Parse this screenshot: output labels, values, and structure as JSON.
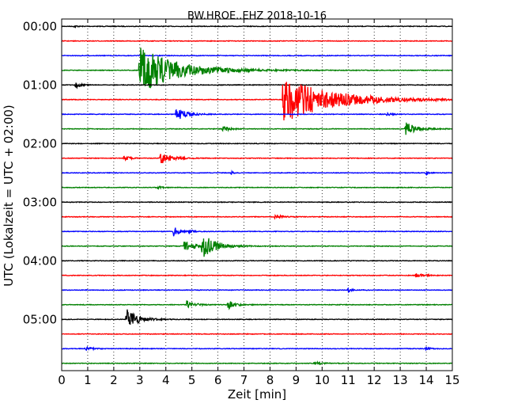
{
  "chart_data": {
    "type": "line",
    "title": "BW.HROE..EHZ 2018-10-16",
    "xlabel": "Zeit  [min]",
    "ylabel": "UTC (Lokalzeit = UTC + 02:00)",
    "xlim": [
      0,
      15
    ],
    "xticks": [
      0,
      1,
      2,
      3,
      4,
      5,
      6,
      7,
      8,
      9,
      10,
      11,
      12,
      13,
      14,
      15
    ],
    "ylim_rows": [
      -0.5,
      23.5
    ],
    "ytick_labels": [
      {
        "row": 0,
        "label": "00:00"
      },
      {
        "row": 4,
        "label": "01:00"
      },
      {
        "row": 8,
        "label": "02:00"
      },
      {
        "row": 12,
        "label": "03:00"
      },
      {
        "row": 16,
        "label": "04:00"
      },
      {
        "row": 20,
        "label": "05:00"
      }
    ],
    "grid": "x-dotted",
    "trace_minutes_per_row": 15,
    "trace_colors": [
      "#000000",
      "#ff0000",
      "#0000ff",
      "#008000"
    ],
    "traces": [
      {
        "row": 0,
        "start": "00:00",
        "events": [
          {
            "t": 0.5,
            "amp": 0.15,
            "dur": 0.2
          }
        ]
      },
      {
        "row": 1,
        "start": "00:15",
        "events": []
      },
      {
        "row": 2,
        "start": "00:30",
        "events": []
      },
      {
        "row": 3,
        "start": "00:45",
        "events": [
          {
            "t": 3.0,
            "amp": 3.3,
            "dur": 3.0
          }
        ]
      },
      {
        "row": 4,
        "start": "01:00",
        "events": [
          {
            "t": 0.55,
            "amp": 0.5,
            "dur": 0.3
          }
        ]
      },
      {
        "row": 5,
        "start": "01:15",
        "events": [
          {
            "t": 8.5,
            "amp": 3.2,
            "dur": 4.0
          }
        ]
      },
      {
        "row": 6,
        "start": "01:30",
        "events": [
          {
            "t": 4.4,
            "amp": 0.9,
            "dur": 0.8
          },
          {
            "t": 12.5,
            "amp": 0.2,
            "dur": 0.4
          }
        ]
      },
      {
        "row": 7,
        "start": "01:45",
        "events": [
          {
            "t": 6.2,
            "amp": 0.4,
            "dur": 0.5
          },
          {
            "t": 13.2,
            "amp": 1.1,
            "dur": 0.8
          }
        ]
      },
      {
        "row": 8,
        "start": "02:00",
        "events": []
      },
      {
        "row": 9,
        "start": "02:15",
        "events": [
          {
            "t": 2.4,
            "amp": 0.35,
            "dur": 0.4
          },
          {
            "t": 3.8,
            "amp": 0.8,
            "dur": 0.9
          }
        ]
      },
      {
        "row": 10,
        "start": "02:30",
        "events": [
          {
            "t": 6.5,
            "amp": 0.25,
            "dur": 0.2
          },
          {
            "t": 14.0,
            "amp": 0.2,
            "dur": 0.3
          }
        ]
      },
      {
        "row": 11,
        "start": "02:45",
        "events": [
          {
            "t": 3.7,
            "amp": 0.25,
            "dur": 0.3
          }
        ]
      },
      {
        "row": 12,
        "start": "03:00",
        "events": []
      },
      {
        "row": 13,
        "start": "03:15",
        "events": [
          {
            "t": 8.2,
            "amp": 0.3,
            "dur": 0.6
          }
        ]
      },
      {
        "row": 14,
        "start": "03:30",
        "events": [
          {
            "t": 4.3,
            "amp": 0.7,
            "dur": 0.4
          },
          {
            "t": 4.9,
            "amp": 0.3,
            "dur": 0.3
          }
        ]
      },
      {
        "row": 15,
        "start": "03:45",
        "events": [
          {
            "t": 4.7,
            "amp": 0.6,
            "dur": 1.4
          },
          {
            "t": 5.4,
            "amp": 1.6,
            "dur": 1.0
          }
        ]
      },
      {
        "row": 16,
        "start": "04:00",
        "events": []
      },
      {
        "row": 17,
        "start": "04:15",
        "events": [
          {
            "t": 13.6,
            "amp": 0.3,
            "dur": 0.6
          }
        ]
      },
      {
        "row": 18,
        "start": "04:30",
        "events": [
          {
            "t": 11.0,
            "amp": 0.25,
            "dur": 0.3
          }
        ]
      },
      {
        "row": 19,
        "start": "04:45",
        "events": [
          {
            "t": 4.8,
            "amp": 0.6,
            "dur": 0.6
          },
          {
            "t": 6.4,
            "amp": 0.6,
            "dur": 0.6
          }
        ]
      },
      {
        "row": 20,
        "start": "05:00",
        "events": [
          {
            "t": 2.5,
            "amp": 1.4,
            "dur": 0.9
          }
        ]
      },
      {
        "row": 21,
        "start": "05:15",
        "events": []
      },
      {
        "row": 22,
        "start": "05:30",
        "events": [
          {
            "t": 0.9,
            "amp": 0.3,
            "dur": 0.5
          },
          {
            "t": 14.0,
            "amp": 0.25,
            "dur": 0.3
          }
        ]
      },
      {
        "row": 23,
        "start": "05:45",
        "events": [
          {
            "t": 9.7,
            "amp": 0.3,
            "dur": 0.5
          }
        ]
      }
    ]
  }
}
